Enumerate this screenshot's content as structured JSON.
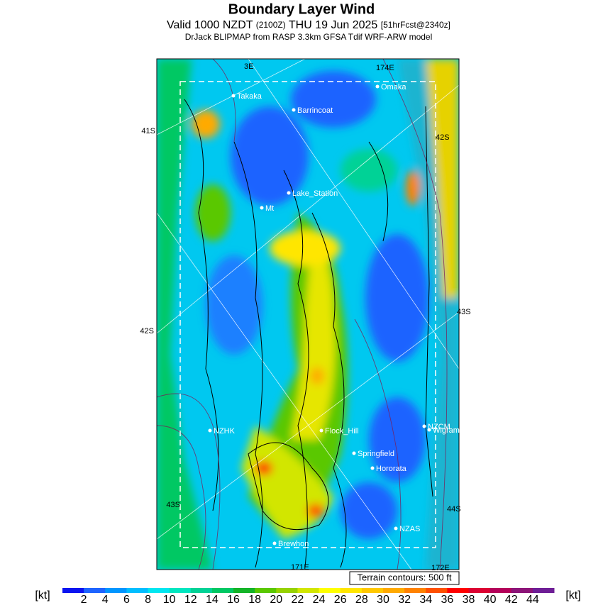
{
  "header": {
    "title": "Boundary Layer Wind",
    "valid": "Valid 1000 NZDT",
    "utc": "(2100Z)",
    "date": "THU 19 Jun 2025",
    "forecast": "[51hrFcst@2340z]",
    "model": "DrJack BLIPMAP from RASP 3.3km GFSA Tdif WRF-ARW model"
  },
  "map": {
    "places": [
      "Takaka",
      "Barrincoat",
      "Omaka",
      "Lake_Station",
      "Mt",
      "NZHK",
      "Flock_Hill",
      "NZCM",
      "Wigram",
      "Springfield",
      "Hororata",
      "NZAS",
      "Brewhon"
    ],
    "graticule_labels": [
      "3E",
      "174E",
      "41S",
      "42S",
      "42S",
      "43S",
      "43S",
      "44S",
      "171E",
      "172E"
    ],
    "terrain_note": "Terrain contours: 500 ft"
  },
  "colorbar": {
    "unit_left": "[kt]",
    "unit_right": "[kt]",
    "ticks": [
      2,
      4,
      6,
      8,
      10,
      12,
      14,
      16,
      18,
      20,
      22,
      24,
      26,
      28,
      30,
      32,
      34,
      36,
      38,
      40,
      42,
      44
    ],
    "colors": [
      "#0a14f0",
      "#1e64ff",
      "#0096ff",
      "#00beff",
      "#00e6f0",
      "#00e6c0",
      "#00d296",
      "#00c864",
      "#14b428",
      "#5ac800",
      "#96d200",
      "#d2e600",
      "#ffff00",
      "#ffe600",
      "#ffc800",
      "#ffaa00",
      "#ff8200",
      "#ff5000",
      "#ff0000",
      "#dc0032",
      "#b4005a",
      "#8c1478",
      "#6e1e96"
    ]
  }
}
